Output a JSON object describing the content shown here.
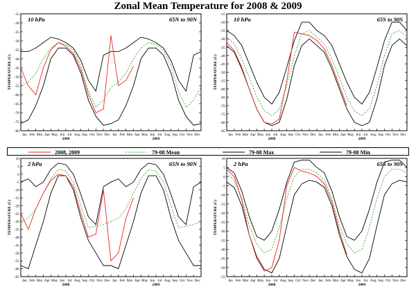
{
  "title": "Zonal Mean Temperature for 2008 & 2009",
  "colors": {
    "current": "#e8231d",
    "mean": "#33a02c",
    "max": "#000000",
    "min": "#000000",
    "frame": "#000000"
  },
  "legend": {
    "current": "2008, 2009",
    "mean": "79-08 Mean",
    "max": "79-08 Max",
    "min": "79-08 Min"
  },
  "months": [
    "Jan",
    "Feb",
    "Mar",
    "Apr",
    "May",
    "Jun",
    "Jul",
    "Aug",
    "Sep",
    "Oct",
    "Nov",
    "Dec",
    "Jan",
    "Feb",
    "Mar",
    "Apr",
    "May",
    "Jun",
    "Jul",
    "Aug",
    "Sep",
    "Oct",
    "Nov",
    "Dec"
  ],
  "years": [
    "2008",
    "2009"
  ],
  "chart_data": [
    {
      "type": "line",
      "pressure": "10 hPa",
      "region": "65N to 90N",
      "ylabel": "TEMPERATURE (C)",
      "ylim": [
        -80,
        -15
      ],
      "yticks": [
        -80,
        -75,
        -70,
        -65,
        -60,
        -55,
        -50,
        -45,
        -40,
        -35,
        -30,
        -25,
        -20,
        -15
      ],
      "x": [
        0,
        1,
        2,
        3,
        4,
        5,
        6,
        7,
        8,
        9,
        10,
        11,
        12,
        13,
        14,
        15,
        16,
        17,
        18,
        19,
        20,
        21,
        22,
        23,
        24
      ],
      "series": [
        {
          "name": "79-08 Max",
          "values": [
            -36,
            -36,
            -34,
            -31,
            -28,
            -29,
            -31,
            -34,
            -41,
            -52,
            -58,
            -38,
            -36,
            -36,
            -34,
            -31,
            -28,
            -29,
            -31,
            -34,
            -41,
            -52,
            -58,
            -38,
            -36
          ]
        },
        {
          "name": "79-08 Mean",
          "values": [
            -55,
            -53,
            -48,
            -40,
            -34,
            -31,
            -32,
            -35,
            -44,
            -58,
            -67,
            -63,
            -56,
            -53,
            -48,
            -40,
            -34,
            -31,
            -32,
            -35,
            -44,
            -58,
            -67,
            -63,
            -56
          ]
        },
        {
          "name": "79-08 Min",
          "values": [
            -76,
            -74,
            -66,
            -55,
            -40,
            -34,
            -34,
            -38,
            -48,
            -63,
            -72,
            -77,
            -76,
            -74,
            -66,
            -55,
            -40,
            -34,
            -34,
            -38,
            -48,
            -63,
            -72,
            -77,
            -76
          ]
        },
        {
          "name": "2008, 2009",
          "values": [
            -45,
            -55,
            -60,
            -45,
            -35,
            -31,
            -33,
            -37,
            -46,
            -60,
            -70,
            -68,
            -27,
            -55,
            -52,
            -44,
            null,
            null,
            null,
            null,
            null,
            null,
            null,
            null,
            null
          ]
        }
      ]
    },
    {
      "type": "line",
      "pressure": "10 hPa",
      "region": "65S to 90S",
      "ylabel": "TEMPERATURE (C)",
      "ylim": [
        -85,
        -15
      ],
      "yticks": [
        -85,
        -80,
        -75,
        -70,
        -65,
        -60,
        -55,
        -50,
        -45,
        -40,
        -35,
        -30,
        -25,
        -20,
        -15
      ],
      "x": [
        0,
        1,
        2,
        3,
        4,
        5,
        6,
        7,
        8,
        9,
        10,
        11,
        12,
        13,
        14,
        15,
        16,
        17,
        18,
        19,
        20,
        21,
        22,
        23,
        24
      ],
      "series": [
        {
          "name": "79-08 Max",
          "values": [
            -25,
            -28,
            -34,
            -45,
            -56,
            -65,
            -69,
            -62,
            -47,
            -31,
            -20,
            -20,
            -25,
            -28,
            -34,
            -45,
            -56,
            -65,
            -69,
            -62,
            -47,
            -31,
            -20,
            -20,
            -25
          ]
        },
        {
          "name": "79-08 Mean",
          "values": [
            -29,
            -33,
            -42,
            -53,
            -65,
            -73,
            -76,
            -72,
            -58,
            -40,
            -27,
            -25,
            -29,
            -33,
            -42,
            -53,
            -65,
            -73,
            -76,
            -72,
            -58,
            -40,
            -27,
            -25,
            -29
          ]
        },
        {
          "name": "79-08 Min",
          "values": [
            -34,
            -38,
            -48,
            -60,
            -72,
            -80,
            -82,
            -80,
            -66,
            -46,
            -34,
            -30,
            -34,
            -38,
            -48,
            -60,
            -72,
            -80,
            -82,
            -80,
            -66,
            -46,
            -34,
            -30,
            -34
          ]
        },
        {
          "name": "2008, 2009",
          "values": [
            -32,
            -37,
            -47,
            -60,
            -72,
            -80,
            -81,
            -78,
            -55,
            -26,
            -27,
            -28,
            -31,
            -36,
            -46,
            -58,
            -70,
            null,
            null,
            null,
            null,
            null,
            null,
            null,
            null
          ]
        }
      ]
    },
    {
      "type": "line",
      "pressure": "2 hPa",
      "region": "65N to 90N",
      "ylabel": "TEMPERATURE (C)",
      "ylim": [
        -65,
        10
      ],
      "yticks": [
        -65,
        -60,
        -55,
        -50,
        -45,
        -40,
        -35,
        -30,
        -25,
        -20,
        -15,
        -10,
        -5,
        0,
        5,
        10
      ],
      "x": [
        0,
        1,
        2,
        3,
        4,
        5,
        6,
        7,
        8,
        9,
        10,
        11,
        12,
        13,
        14,
        15,
        16,
        17,
        18,
        19,
        20,
        21,
        22,
        23,
        24
      ],
      "series": [
        {
          "name": "79-08 Max",
          "values": [
            -5,
            -3,
            -8,
            -5,
            3,
            7,
            6,
            0,
            -13,
            -27,
            -32,
            -8,
            -5,
            -3,
            -8,
            -5,
            3,
            7,
            6,
            0,
            -13,
            -27,
            -32,
            -8,
            -5
          ]
        },
        {
          "name": "79-08 Mean",
          "values": [
            -30,
            -28,
            -22,
            -12,
            -3,
            3,
            2,
            -5,
            -20,
            -34,
            -33,
            -32,
            -30,
            -28,
            -22,
            -12,
            -3,
            3,
            2,
            -5,
            -20,
            -34,
            -33,
            -32,
            -30
          ]
        },
        {
          "name": "79-08 Min",
          "values": [
            -58,
            -60,
            -45,
            -30,
            -12,
            -1,
            -1,
            -10,
            -28,
            -42,
            -50,
            -58,
            -58,
            -60,
            -45,
            -30,
            -12,
            -1,
            -1,
            -10,
            -28,
            -42,
            -50,
            -58,
            -58
          ]
        },
        {
          "name": "2008, 2009",
          "values": [
            -25,
            -35,
            -22,
            -12,
            -4,
            0,
            -1,
            -8,
            -25,
            -40,
            -38,
            -10,
            -55,
            -50,
            -28,
            -15,
            null,
            null,
            null,
            null,
            null,
            null,
            null,
            null,
            null
          ]
        }
      ]
    },
    {
      "type": "line",
      "pressure": "2 hPa",
      "region": "65S to 90S",
      "ylabel": "TEMPERATURE (C)",
      "ylim": [
        -55,
        10
      ],
      "yticks": [
        -55,
        -50,
        -45,
        -40,
        -35,
        -30,
        -25,
        -20,
        -15,
        -10,
        -5,
        0,
        5,
        10
      ],
      "x": [
        0,
        1,
        2,
        3,
        4,
        5,
        6,
        7,
        8,
        9,
        10,
        11,
        12,
        13,
        14,
        15,
        16,
        17,
        18,
        19,
        20,
        21,
        22,
        23,
        24
      ],
      "series": [
        {
          "name": "79-08 Max",
          "values": [
            5,
            2,
            -8,
            -22,
            -33,
            -35,
            -30,
            -18,
            -3,
            8,
            9,
            9,
            5,
            2,
            -8,
            -22,
            -33,
            -35,
            -30,
            -18,
            -3,
            8,
            9,
            9,
            5
          ]
        },
        {
          "name": "79-08 Mean",
          "values": [
            2,
            -2,
            -12,
            -27,
            -37,
            -42,
            -40,
            -28,
            -12,
            0,
            4,
            4,
            2,
            -2,
            -12,
            -27,
            -37,
            -42,
            -40,
            -28,
            -12,
            0,
            4,
            4,
            2
          ]
        },
        {
          "name": "79-08 Min",
          "values": [
            -3,
            -6,
            -16,
            -32,
            -44,
            -51,
            -53,
            -45,
            -27,
            -10,
            -4,
            -2,
            -3,
            -6,
            -16,
            -32,
            -44,
            -51,
            -53,
            -45,
            -27,
            -10,
            -4,
            -2,
            -3
          ]
        },
        {
          "name": "2008, 2009",
          "values": [
            4,
            0,
            -13,
            -32,
            -45,
            -52,
            -50,
            -35,
            -5,
            5,
            3,
            2,
            0,
            -4,
            -14,
            -30,
            -43,
            null,
            null,
            null,
            null,
            null,
            null,
            null,
            null
          ]
        }
      ]
    }
  ]
}
